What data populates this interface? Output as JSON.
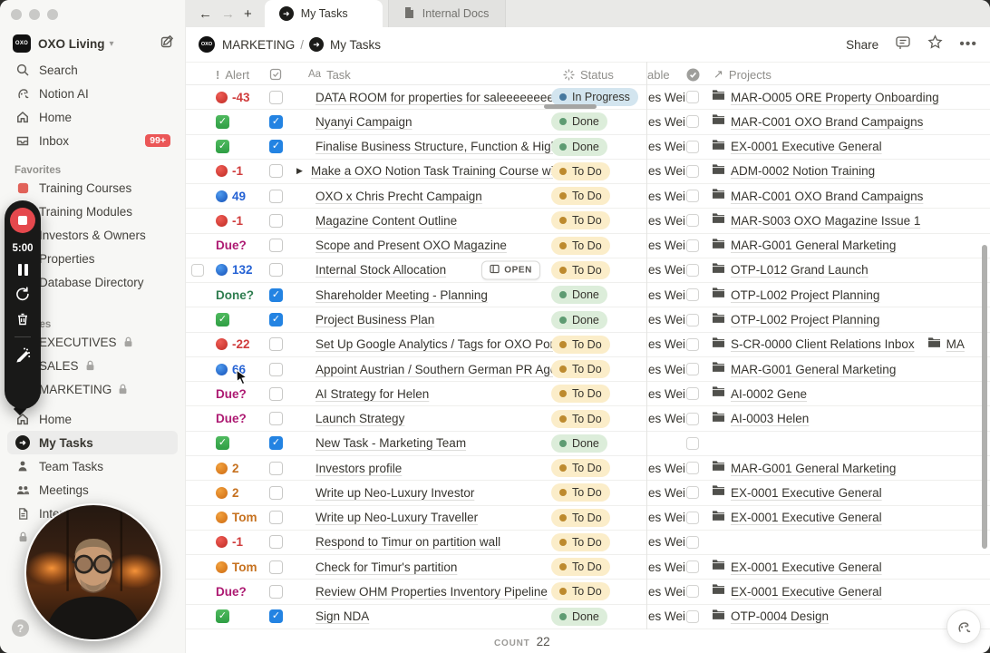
{
  "colors": {
    "accent_blue": "#2383e2",
    "badge_red": "#eb5757",
    "todo_bg": "#fbedc9",
    "done_bg": "#dcedda",
    "inprogress_bg": "#d3e5ef"
  },
  "titlebar": {
    "tabs": [
      {
        "label": "My Tasks",
        "icon": "target"
      },
      {
        "label": "Internal Docs",
        "icon": "doc"
      }
    ]
  },
  "sidebar": {
    "workspace": {
      "name": "OXO Living"
    },
    "nav": [
      {
        "icon": "search",
        "label": "Search"
      },
      {
        "icon": "ai",
        "label": "Notion AI"
      },
      {
        "icon": "home",
        "label": "Home"
      },
      {
        "icon": "inbox",
        "label": "Inbox",
        "badge": "99+"
      }
    ],
    "favorites": {
      "label": "Favorites",
      "items": [
        {
          "icon": "red-tile",
          "label": "Training Courses"
        },
        {
          "icon": "doc",
          "label": "Training Modules"
        },
        {
          "icon": "doc",
          "label": "Investors & Owners"
        },
        {
          "icon": "doc",
          "label": "Properties"
        },
        {
          "icon": "doc",
          "label": "Database Directory"
        }
      ]
    },
    "spaces": {
      "label": "Spaces",
      "items": [
        {
          "icon": "tile",
          "label": "EXECUTIVES",
          "locked": true
        },
        {
          "icon": "tile",
          "label": "SALES",
          "locked": true
        },
        {
          "icon": "tile",
          "label": "MARKETING",
          "locked": true
        }
      ]
    },
    "pages": [
      {
        "icon": "home",
        "label": "Home"
      },
      {
        "icon": "target",
        "label": "My Tasks",
        "selected": true
      },
      {
        "icon": "person",
        "label": "Team Tasks"
      },
      {
        "icon": "people",
        "label": "Meetings"
      },
      {
        "icon": "doc",
        "label": "Internal Docs"
      },
      {
        "icon": "lock",
        "label": ""
      }
    ]
  },
  "header": {
    "breadcrumb": {
      "space": "MARKETING",
      "separator": "/",
      "page": "My Tasks"
    },
    "share_label": "Share"
  },
  "recorder": {
    "time": "5:00"
  },
  "table": {
    "headers": {
      "alert": "Alert",
      "task": "Task",
      "status": "Status",
      "person_partial": "able",
      "projects": "Projects"
    },
    "open_label": "OPEN",
    "count_label": "COUNT",
    "count": "22",
    "rows": [
      {
        "alert": {
          "icon": "red",
          "text": "-43"
        },
        "checked": false,
        "title": "DATA ROOM for properties for saleeeeeeeeeeee",
        "status": "In Progress",
        "person": "es Weis",
        "projects": [
          "MAR-O005 ORE Property Onboarding"
        ]
      },
      {
        "alert": {
          "icon": "green"
        },
        "checked": true,
        "title": "Nyanyi Campaign",
        "status": "Done",
        "person": "es Weis",
        "projects": [
          "MAR-C001 OXO Brand Campaigns"
        ]
      },
      {
        "alert": {
          "icon": "green"
        },
        "checked": true,
        "title": "Finalise Business Structure, Function & High L",
        "status": "Done",
        "person": "es Weis",
        "projects": [
          "EX-0001 Executive General"
        ]
      },
      {
        "alert": {
          "icon": "red",
          "text": "-1"
        },
        "checked": false,
        "expand": true,
        "title": "Make a OXO Notion Task Training Course with",
        "status": "To Do",
        "person": "es Weis",
        "projects": [
          "ADM-0002 Notion Training"
        ]
      },
      {
        "alert": {
          "icon": "blue",
          "text": "49"
        },
        "checked": false,
        "title": "OXO x Chris Precht Campaign",
        "status": "To Do",
        "person": "es Weis",
        "projects": [
          "MAR-C001 OXO Brand Campaigns"
        ]
      },
      {
        "alert": {
          "icon": "red",
          "text": "-1"
        },
        "checked": false,
        "title": "Magazine Content Outline",
        "status": "To Do",
        "person": "es Weis",
        "projects": [
          "MAR-S003 OXO Magazine Issue 1"
        ]
      },
      {
        "alert": {
          "text": "Due?",
          "cls": "due"
        },
        "checked": false,
        "title": "Scope and Present OXO Magazine",
        "status": "To Do",
        "person": "es Weis",
        "projects": [
          "MAR-G001 General Marketing"
        ]
      },
      {
        "alert": {
          "icon": "blue",
          "text": "132"
        },
        "checked": false,
        "select": true,
        "open": true,
        "title": "Internal Stock Allocation",
        "status": "To Do",
        "person": "es Weis",
        "projects": [
          "OTP-L012 Grand Launch"
        ]
      },
      {
        "alert": {
          "text": "Done?",
          "cls": "donetext"
        },
        "checked": true,
        "title": "Shareholder Meeting - Planning",
        "status": "Done",
        "person": "es Weis",
        "projects": [
          "OTP-L002 Project Planning"
        ]
      },
      {
        "alert": {
          "icon": "green"
        },
        "checked": true,
        "title": "Project Business Plan",
        "status": "Done",
        "person": "es Weis",
        "projects": [
          "OTP-L002 Project Planning"
        ]
      },
      {
        "alert": {
          "icon": "red",
          "text": "-22"
        },
        "checked": false,
        "title": "Set Up Google Analytics / Tags for OXO Portal",
        "status": "To Do",
        "person": "es Weis",
        "projects": [
          "S-CR-0000 Client Relations Inbox",
          "MA"
        ]
      },
      {
        "alert": {
          "icon": "blue",
          "text": "66"
        },
        "checked": false,
        "title": "Appoint Austrian / Southern German PR Agenc",
        "status": "To Do",
        "person": "es Weis",
        "projects": [
          "MAR-G001 General Marketing"
        ]
      },
      {
        "alert": {
          "text": "Due?",
          "cls": "due"
        },
        "checked": false,
        "title": "AI Strategy for Helen",
        "status": "To Do",
        "person": "es Weis",
        "projects": [
          "AI-0002 Gene"
        ]
      },
      {
        "alert": {
          "text": "Due?",
          "cls": "due"
        },
        "checked": false,
        "title": "Launch Strategy",
        "status": "To Do",
        "person": "es Weis",
        "projects": [
          "AI-0003 Helen"
        ]
      },
      {
        "alert": {
          "icon": "green"
        },
        "checked": true,
        "title": "New Task - Marketing Team",
        "status": "Done",
        "person": "",
        "projects": []
      },
      {
        "alert": {
          "icon": "orange",
          "text": "2"
        },
        "checked": false,
        "title": "Investors profile",
        "status": "To Do",
        "person": "es Weis",
        "projects": [
          "MAR-G001 General Marketing"
        ]
      },
      {
        "alert": {
          "icon": "orange",
          "text": "2"
        },
        "checked": false,
        "title": "Write up Neo-Luxury Investor",
        "status": "To Do",
        "person": "es Weis",
        "projects": [
          "EX-0001 Executive General"
        ]
      },
      {
        "alert": {
          "icon": "orange",
          "text": "Tom"
        },
        "checked": false,
        "title": "Write up Neo-Luxury Traveller",
        "status": "To Do",
        "person": "es Weis",
        "projects": [
          "EX-0001 Executive General"
        ]
      },
      {
        "alert": {
          "icon": "red",
          "text": "-1"
        },
        "checked": false,
        "title": "Respond to Timur on partition wall",
        "status": "To Do",
        "person": "es Weis",
        "projects": []
      },
      {
        "alert": {
          "icon": "orange",
          "text": "Tom"
        },
        "checked": false,
        "title": "Check for Timur's partition",
        "status": "To Do",
        "person": "es Weis",
        "projects": [
          "EX-0001 Executive General"
        ]
      },
      {
        "alert": {
          "text": "Due?",
          "cls": "due"
        },
        "checked": false,
        "title": "Review OHM Properties Inventory Pipeline",
        "status": "To Do",
        "person": "es Weis",
        "projects": [
          "EX-0001 Executive General"
        ]
      },
      {
        "alert": {
          "icon": "green"
        },
        "checked": true,
        "title": "Sign NDA",
        "status": "Done",
        "person": "es Weis",
        "projects": [
          "OTP-0004 Design"
        ]
      }
    ]
  }
}
